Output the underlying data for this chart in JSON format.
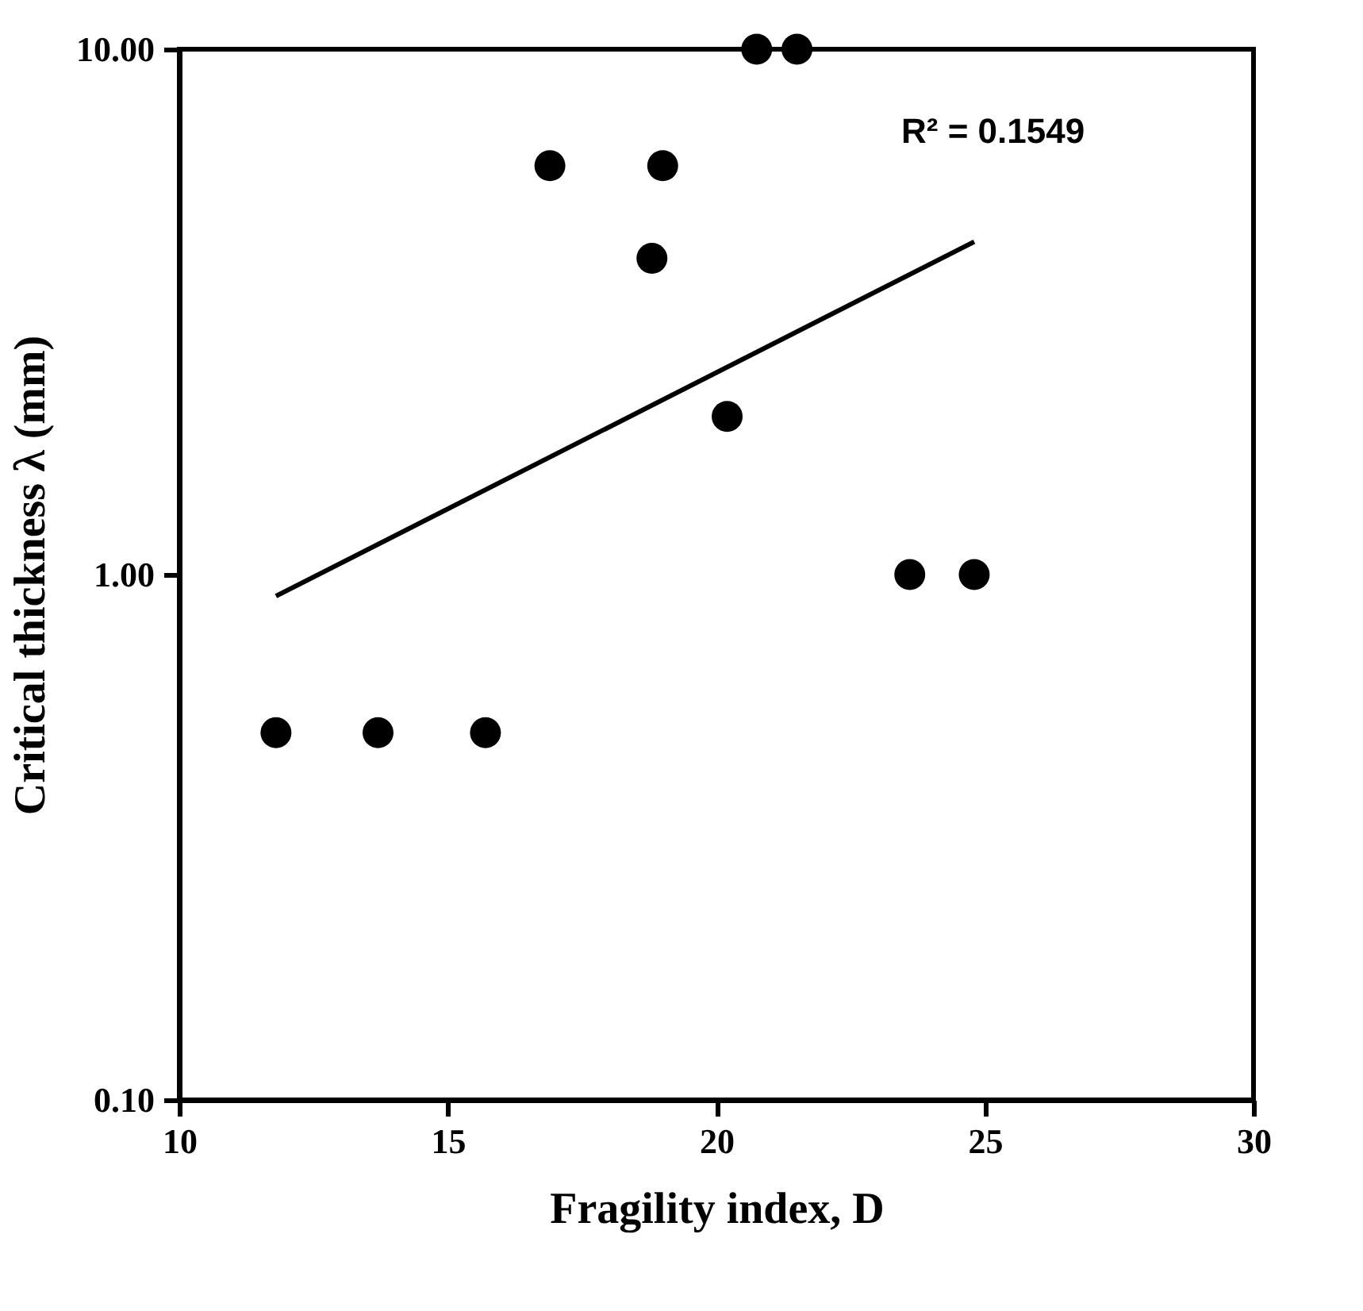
{
  "chart_data": {
    "type": "scatter",
    "xlabel": "Fragility index, D",
    "ylabel": "Critical thickness λ (mm)",
    "xlim": [
      10,
      30
    ],
    "xticks": [
      10,
      15,
      20,
      25,
      30
    ],
    "ylim": [
      0.1,
      10
    ],
    "yticks": [
      {
        "value": 0.1,
        "label": "0.10"
      },
      {
        "value": 1,
        "label": "1.00"
      },
      {
        "value": 10,
        "label": "10.00"
      }
    ],
    "log": "y",
    "grid": false,
    "marker": "circle",
    "annotations": [
      "R² = 0.1549"
    ],
    "series": [
      {
        "color": "#000000",
        "x": [
          11.8,
          13.7,
          15.7,
          16.9,
          19.0,
          18.8,
          20.2,
          20.75,
          21.5,
          23.6,
          24.8
        ],
        "values": [
          0.5,
          0.5,
          0.5,
          6.0,
          6.0,
          4.0,
          2.0,
          10,
          10,
          1.0,
          1.0
        ]
      },
      {
        "type": "line",
        "color": "#000000",
        "marker": "none",
        "x": [
          11.8,
          24.8
        ],
        "values": [
          0.91,
          4.3
        ]
      }
    ]
  }
}
